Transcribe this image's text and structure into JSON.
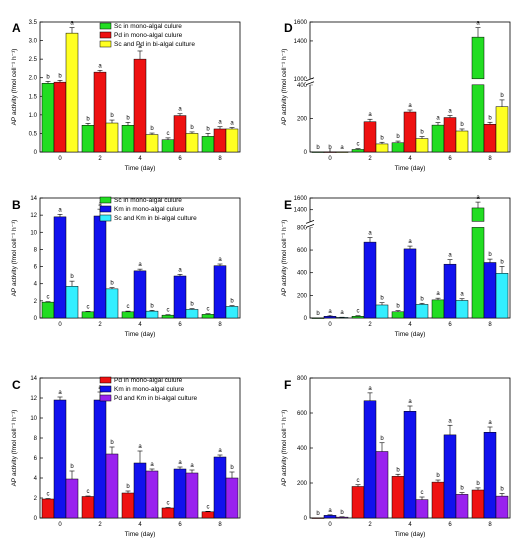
{
  "colors": {
    "sc": "#22dd22",
    "pd": "#ee1111",
    "km": "#1111ee",
    "mix_sc_pd": "#ffff22",
    "mix_sc_km": "#33eeff",
    "mix_pd_km": "#9922ee"
  },
  "chart_data": [
    {
      "panel": "A",
      "type": "bar",
      "xlabel": "Time (day)",
      "ylabel": "AP activity (fmol cell⁻¹ h⁻¹)",
      "categories": [
        "0",
        "2",
        "4",
        "6",
        "8"
      ],
      "ylim": [
        0,
        3.5
      ],
      "yticks": [
        0,
        0.5,
        1.0,
        1.5,
        2.0,
        2.5,
        3.0,
        3.5
      ],
      "ytick_labels": [
        "0",
        "0.5",
        "1.0",
        "1.5",
        "2.0",
        "2.5",
        "3.0",
        "3.5"
      ],
      "legend_position": "top-center",
      "series": [
        {
          "name": "Sc in mono-algal culure",
          "color": "sc",
          "values": [
            1.85,
            0.72,
            0.72,
            0.33,
            0.42
          ],
          "errors": [
            0.05,
            0.05,
            0.08,
            0.05,
            0.08
          ],
          "letters": [
            "b",
            "b",
            "b",
            "c",
            "b"
          ]
        },
        {
          "name": "Pd in mono-algal culure",
          "color": "pd",
          "values": [
            1.88,
            2.15,
            2.5,
            0.98,
            0.62
          ],
          "errors": [
            0.05,
            0.05,
            0.22,
            0.05,
            0.06
          ],
          "letters": [
            "b",
            "a",
            "a",
            "a",
            "a"
          ]
        },
        {
          "name": "Sc and Pd in bi-algal culture",
          "color": "mix_sc_pd",
          "values": [
            3.2,
            0.78,
            0.47,
            0.5,
            0.62
          ],
          "errors": [
            0.15,
            0.08,
            0.04,
            0.04,
            0.04
          ],
          "letters": [
            "a",
            "b",
            "b",
            "b",
            "a"
          ]
        }
      ]
    },
    {
      "panel": "B",
      "type": "bar",
      "xlabel": "Time (day)",
      "ylabel": "AP activity (fmol cell⁻¹ h⁻¹)",
      "categories": [
        "0",
        "2",
        "4",
        "6",
        "8"
      ],
      "ylim": [
        0,
        14
      ],
      "yticks": [
        0,
        2,
        4,
        6,
        8,
        10,
        12,
        14
      ],
      "ytick_labels": [
        "0",
        "2",
        "4",
        "6",
        "8",
        "10",
        "12",
        "14"
      ],
      "legend_position": "top-center",
      "series": [
        {
          "name": "Sc in mono-algal culure",
          "color": "sc",
          "values": [
            1.85,
            0.72,
            0.72,
            0.33,
            0.42
          ],
          "errors": [
            0.05,
            0.05,
            0.08,
            0.05,
            0.08
          ],
          "letters": [
            "c",
            "c",
            "c",
            "c",
            "c"
          ]
        },
        {
          "name": "Km in mono-algal culure",
          "color": "km",
          "values": [
            11.8,
            11.9,
            5.5,
            4.9,
            6.1
          ],
          "errors": [
            0.3,
            0.8,
            0.2,
            0.2,
            0.2
          ],
          "letters": [
            "a",
            "a",
            "a",
            "a",
            "a"
          ]
        },
        {
          "name": "Sc and Km in bi-algal culture",
          "color": "mix_sc_km",
          "values": [
            3.7,
            3.4,
            0.8,
            1.0,
            1.35
          ],
          "errors": [
            0.6,
            0.15,
            0.1,
            0.1,
            0.1
          ],
          "letters": [
            "b",
            "b",
            "b",
            "b",
            "b"
          ]
        }
      ]
    },
    {
      "panel": "C",
      "type": "bar",
      "xlabel": "Time (day)",
      "ylabel": "AP activity (fmol cell⁻¹ h⁻¹)",
      "categories": [
        "0",
        "2",
        "4",
        "6",
        "8"
      ],
      "ylim": [
        0,
        14
      ],
      "yticks": [
        0,
        2,
        4,
        6,
        8,
        10,
        12,
        14
      ],
      "ytick_labels": [
        "0",
        "2",
        "4",
        "6",
        "8",
        "10",
        "12",
        "14"
      ],
      "legend_position": "top-center",
      "series": [
        {
          "name": "Pd in mono-algal culure",
          "color": "pd",
          "values": [
            1.9,
            2.15,
            2.5,
            1.0,
            0.62
          ],
          "errors": [
            0.05,
            0.05,
            0.2,
            0.05,
            0.05
          ],
          "letters": [
            "c",
            "c",
            "b",
            "c",
            "c"
          ]
        },
        {
          "name": "Km in mono-algal culure",
          "color": "km",
          "values": [
            11.8,
            11.8,
            5.5,
            4.9,
            6.1
          ],
          "errors": [
            0.3,
            0.8,
            1.2,
            0.2,
            0.2
          ],
          "letters": [
            "a",
            "a",
            "a",
            "a",
            "a"
          ]
        },
        {
          "name": "Pd and Km in bi-algal culture",
          "color": "mix_pd_km",
          "values": [
            3.9,
            6.4,
            4.7,
            4.5,
            4.0
          ],
          "errors": [
            0.8,
            0.7,
            0.2,
            0.3,
            0.6
          ],
          "letters": [
            "b",
            "b",
            "a",
            "a",
            "b"
          ]
        }
      ]
    },
    {
      "panel": "D",
      "type": "bar",
      "xlabel": "Time (day)",
      "ylabel": "AP activity (fmol cell⁻¹ h⁻¹)",
      "categories": [
        "0",
        "2",
        "4",
        "6",
        "8"
      ],
      "ylim": [
        0,
        1600
      ],
      "axis_break": {
        "lower": [
          0,
          400
        ],
        "upper": [
          1000,
          1600
        ]
      },
      "yticks": [
        0,
        200,
        400,
        1000,
        1400,
        1600
      ],
      "ytick_labels": [
        "0",
        "200",
        "400",
        "1000",
        "1400",
        "1600"
      ],
      "series": [
        {
          "name": "Sc in mono-algal culure",
          "color": "sc",
          "values": [
            0.5,
            15,
            55,
            160,
            1440
          ],
          "errors": [
            0,
            5,
            10,
            15,
            100
          ],
          "letters": [
            "b",
            "c",
            "b",
            "a",
            "a"
          ]
        },
        {
          "name": "Pd in mono-algal culure",
          "color": "pd",
          "values": [
            0.5,
            180,
            238,
            205,
            165
          ],
          "errors": [
            0,
            15,
            12,
            12,
            12
          ],
          "letters": [
            "b",
            "a",
            "a",
            "a",
            "b"
          ]
        },
        {
          "name": "Sc and Pd in bi-algal culture",
          "color": "mix_sc_pd",
          "values": [
            0.5,
            48,
            80,
            125,
            270
          ],
          "errors": [
            0,
            10,
            12,
            12,
            40
          ],
          "letters": [
            "a",
            "b",
            "b",
            "b",
            "b"
          ]
        }
      ]
    },
    {
      "panel": "E",
      "type": "bar",
      "xlabel": "Time (day)",
      "ylabel": "AP activity (fmol cell⁻¹ h⁻¹)",
      "categories": [
        "0",
        "2",
        "4",
        "6",
        "8"
      ],
      "ylim": [
        0,
        1600
      ],
      "axis_break": {
        "lower": [
          0,
          800
        ],
        "upper": [
          1200,
          1600
        ]
      },
      "yticks": [
        0,
        200,
        400,
        600,
        800,
        1400,
        1600
      ],
      "ytick_labels": [
        "0",
        "200",
        "400",
        "600",
        "800",
        "1400",
        "1600"
      ],
      "series": [
        {
          "name": "Sc in mono-algal culure",
          "color": "sc",
          "values": [
            0.5,
            15,
            55,
            160,
            1430
          ],
          "errors": [
            0,
            5,
            10,
            15,
            100
          ],
          "letters": [
            "b",
            "c",
            "b",
            "a",
            "a"
          ]
        },
        {
          "name": "Km in mono-algal culure",
          "color": "km",
          "values": [
            15,
            670,
            610,
            475,
            490
          ],
          "errors": [
            3,
            40,
            25,
            40,
            30
          ],
          "letters": [
            "a",
            "a",
            "a",
            "a",
            "b"
          ]
        },
        {
          "name": "Sc and Km in bi-algal culture",
          "color": "mix_sc_km",
          "values": [
            5,
            115,
            120,
            155,
            395
          ],
          "errors": [
            2,
            20,
            10,
            15,
            60
          ],
          "letters": [
            "a",
            "b",
            "b",
            "a",
            "b"
          ]
        }
      ]
    },
    {
      "panel": "F",
      "type": "bar",
      "xlabel": "Time (day)",
      "ylabel": "AP activity (fmol cell⁻¹ h⁻¹)",
      "categories": [
        "0",
        "2",
        "4",
        "6",
        "8"
      ],
      "ylim": [
        0,
        800
      ],
      "yticks": [
        0,
        200,
        400,
        600,
        800
      ],
      "ytick_labels": [
        "0",
        "200",
        "400",
        "600",
        "800"
      ],
      "series": [
        {
          "name": "Pd in mono-algal culure",
          "color": "pd",
          "values": [
            0.5,
            180,
            238,
            205,
            160
          ],
          "errors": [
            0,
            10,
            12,
            12,
            12
          ],
          "letters": [
            "b",
            "c",
            "b",
            "b",
            "b"
          ]
        },
        {
          "name": "Km in mono-algal culure",
          "color": "km",
          "values": [
            15,
            670,
            610,
            475,
            490
          ],
          "errors": [
            3,
            45,
            30,
            55,
            30
          ],
          "letters": [
            "a",
            "a",
            "a",
            "a",
            "a"
          ]
        },
        {
          "name": "Pd and Km in bi-algal culture",
          "color": "mix_pd_km",
          "values": [
            5,
            380,
            105,
            135,
            125
          ],
          "errors": [
            2,
            50,
            15,
            10,
            15
          ],
          "letters": [
            "b",
            "b",
            "c",
            "b",
            "b"
          ]
        }
      ]
    }
  ]
}
